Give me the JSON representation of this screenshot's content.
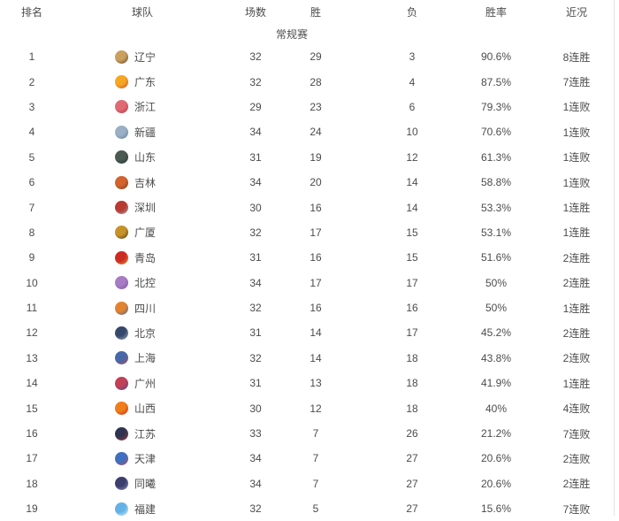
{
  "table": {
    "columns": [
      {
        "label": "排名"
      },
      {
        "label": "球队"
      },
      {
        "label": "场数"
      },
      {
        "label": "胜"
      },
      {
        "label": "负"
      },
      {
        "label": "胜率"
      },
      {
        "label": "近况"
      }
    ],
    "section_label": "常规赛",
    "rows": [
      {
        "rank": "1",
        "team": "辽宁",
        "games": "32",
        "wins": "29",
        "losses": "3",
        "pct": "90.6%",
        "streak": "8连胜",
        "logo": {
          "name": "liaoning-team-logo",
          "c1": "#c9a05e",
          "c2": "#5a452c"
        }
      },
      {
        "rank": "2",
        "team": "广东",
        "games": "32",
        "wins": "28",
        "losses": "4",
        "pct": "87.5%",
        "streak": "7连胜",
        "logo": {
          "name": "guangdong-team-logo",
          "c1": "#f5a623",
          "c2": "#d0442c"
        }
      },
      {
        "rank": "3",
        "team": "浙江",
        "games": "29",
        "wins": "23",
        "losses": "6",
        "pct": "79.3%",
        "streak": "1连败",
        "logo": {
          "name": "zhejiang-team-logo",
          "c1": "#e06a74",
          "c2": "#b8323e"
        }
      },
      {
        "rank": "4",
        "team": "新疆",
        "games": "34",
        "wins": "24",
        "losses": "10",
        "pct": "70.6%",
        "streak": "1连败",
        "logo": {
          "name": "xinjiang-team-logo",
          "c1": "#9bb0c4",
          "c2": "#5f7b9b"
        }
      },
      {
        "rank": "5",
        "team": "山东",
        "games": "31",
        "wins": "19",
        "losses": "12",
        "pct": "61.3%",
        "streak": "1连败",
        "logo": {
          "name": "shandong-team-logo",
          "c1": "#4a5a52",
          "c2": "#243028"
        }
      },
      {
        "rank": "6",
        "team": "吉林",
        "games": "34",
        "wins": "20",
        "losses": "14",
        "pct": "58.8%",
        "streak": "1连败",
        "logo": {
          "name": "jilin-team-logo",
          "c1": "#d4632b",
          "c2": "#6b3a1e"
        }
      },
      {
        "rank": "7",
        "team": "深圳",
        "games": "30",
        "wins": "16",
        "losses": "14",
        "pct": "53.3%",
        "streak": "1连胜",
        "logo": {
          "name": "shenzhen-team-logo",
          "c1": "#b93a31",
          "c2": "#9aa0a6"
        }
      },
      {
        "rank": "8",
        "team": "广厦",
        "games": "32",
        "wins": "17",
        "losses": "15",
        "pct": "53.1%",
        "streak": "1连胜",
        "logo": {
          "name": "guangsha-team-logo",
          "c1": "#c79329",
          "c2": "#4a3415"
        }
      },
      {
        "rank": "9",
        "team": "青岛",
        "games": "31",
        "wins": "16",
        "losses": "15",
        "pct": "51.6%",
        "streak": "2连胜",
        "logo": {
          "name": "qingdao-team-logo",
          "c1": "#cc2b24",
          "c2": "#e09a24"
        }
      },
      {
        "rank": "10",
        "team": "北控",
        "games": "34",
        "wins": "17",
        "losses": "17",
        "pct": "50%",
        "streak": "2连胜",
        "logo": {
          "name": "beikong-team-logo",
          "c1": "#a87cc4",
          "c2": "#7a4e9e"
        }
      },
      {
        "rank": "11",
        "team": "四川",
        "games": "32",
        "wins": "16",
        "losses": "16",
        "pct": "50%",
        "streak": "1连胜",
        "logo": {
          "name": "sichuan-team-logo",
          "c1": "#e2832f",
          "c2": "#3d6ba6"
        }
      },
      {
        "rank": "12",
        "team": "北京",
        "games": "31",
        "wins": "14",
        "losses": "17",
        "pct": "45.2%",
        "streak": "2连胜",
        "logo": {
          "name": "beijing-team-logo",
          "c1": "#35486b",
          "c2": "#9fb0c4"
        }
      },
      {
        "rank": "13",
        "team": "上海",
        "games": "32",
        "wins": "14",
        "losses": "18",
        "pct": "43.8%",
        "streak": "2连败",
        "logo": {
          "name": "shanghai-team-logo",
          "c1": "#4668a8",
          "c2": "#c04a4a"
        }
      },
      {
        "rank": "14",
        "team": "广州",
        "games": "31",
        "wins": "13",
        "losses": "18",
        "pct": "41.9%",
        "streak": "1连胜",
        "logo": {
          "name": "guangzhou-team-logo",
          "c1": "#c24056",
          "c2": "#3c4f95"
        }
      },
      {
        "rank": "15",
        "team": "山西",
        "games": "30",
        "wins": "12",
        "losses": "18",
        "pct": "40%",
        "streak": "4连败",
        "logo": {
          "name": "shanxi-team-logo",
          "c1": "#ef7d1a",
          "c2": "#c5291f"
        }
      },
      {
        "rank": "16",
        "team": "江苏",
        "games": "33",
        "wins": "7",
        "losses": "26",
        "pct": "21.2%",
        "streak": "7连败",
        "logo": {
          "name": "jiangsu-team-logo",
          "c1": "#2e3450",
          "c2": "#b8333f"
        }
      },
      {
        "rank": "17",
        "team": "天津",
        "games": "34",
        "wins": "7",
        "losses": "27",
        "pct": "20.6%",
        "streak": "2连败",
        "logo": {
          "name": "tianjin-team-logo",
          "c1": "#3f6fc1",
          "c2": "#c14a4a"
        }
      },
      {
        "rank": "18",
        "team": "同曦",
        "games": "34",
        "wins": "7",
        "losses": "27",
        "pct": "20.6%",
        "streak": "2连胜",
        "logo": {
          "name": "tongxi-team-logo",
          "c1": "#3c3f6e",
          "c2": "#9193bb"
        }
      },
      {
        "rank": "19",
        "team": "福建",
        "games": "32",
        "wins": "5",
        "losses": "27",
        "pct": "15.6%",
        "streak": "7连败",
        "logo": {
          "name": "fujian-team-logo",
          "c1": "#63b1e5",
          "c2": "#d9edf9"
        }
      }
    ]
  },
  "colors": {
    "text": "#4c4c4c",
    "border": "#e3e3e3",
    "background": "#ffffff"
  }
}
